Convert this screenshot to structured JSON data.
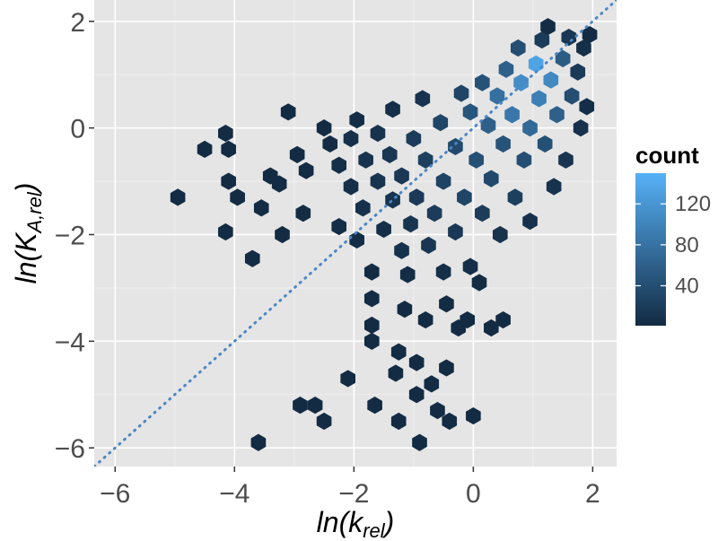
{
  "chart_data": {
    "type": "hexbin",
    "xlabel": "ln(k_rel)",
    "ylabel": "ln(K_A,rel)",
    "xlabel_parts": {
      "prefix": "ln(",
      "main": "k",
      "sub": "rel",
      "suffix": ")"
    },
    "ylabel_parts": {
      "prefix": "ln(",
      "main": "K",
      "sub": "A,rel",
      "suffix": ")"
    },
    "xlim": [
      -6.35,
      2.4
    ],
    "ylim": [
      -6.35,
      2.4
    ],
    "x_ticks": [
      -6,
      -4,
      -2,
      0,
      2
    ],
    "y_ticks": [
      -6,
      -4,
      -2,
      0,
      2
    ],
    "x_tick_labels": [
      "−6",
      "−4",
      "−2",
      "0",
      "2"
    ],
    "y_tick_labels": [
      "−6",
      "−4",
      "−2",
      "0",
      "2"
    ],
    "grid": true,
    "background_color": "#e5e5e5",
    "grid_color": "#ffffff",
    "reference_line": {
      "slope": 1,
      "intercept": 0,
      "style": "dotted",
      "color": "#4a86c6"
    },
    "legend": {
      "title": "count",
      "position": "right",
      "ticks": [
        40,
        80,
        120
      ],
      "tick_labels": [
        "40",
        "80",
        "120"
      ],
      "range": [
        1,
        150
      ],
      "low_color": "#132b43",
      "high_color": "#56b1f7"
    },
    "hexbins": [
      {
        "x": -4.95,
        "y": -1.3,
        "count": 2
      },
      {
        "x": -4.5,
        "y": -0.4,
        "count": 1
      },
      {
        "x": -4.15,
        "y": -0.1,
        "count": 1
      },
      {
        "x": -4.1,
        "y": -1.0,
        "count": 1
      },
      {
        "x": -4.1,
        "y": -0.4,
        "count": 1
      },
      {
        "x": -4.15,
        "y": -1.95,
        "count": 1
      },
      {
        "x": -3.95,
        "y": -1.3,
        "count": 1
      },
      {
        "x": -3.7,
        "y": -2.45,
        "count": 1
      },
      {
        "x": -3.55,
        "y": -1.5,
        "count": 2
      },
      {
        "x": -3.6,
        "y": -5.9,
        "count": 1
      },
      {
        "x": -3.4,
        "y": -0.9,
        "count": 2
      },
      {
        "x": -3.25,
        "y": -1.05,
        "count": 1
      },
      {
        "x": -3.2,
        "y": -2.0,
        "count": 1
      },
      {
        "x": -3.1,
        "y": 0.3,
        "count": 1
      },
      {
        "x": -2.95,
        "y": -0.5,
        "count": 2
      },
      {
        "x": -2.85,
        "y": -1.6,
        "count": 3
      },
      {
        "x": -2.8,
        "y": -0.8,
        "count": 1
      },
      {
        "x": -2.9,
        "y": -5.2,
        "count": 1
      },
      {
        "x": -2.65,
        "y": -5.2,
        "count": 1
      },
      {
        "x": -2.5,
        "y": -5.5,
        "count": 1
      },
      {
        "x": -2.4,
        "y": -0.3,
        "count": 2
      },
      {
        "x": -2.5,
        "y": 0.0,
        "count": 2
      },
      {
        "x": -2.25,
        "y": -0.7,
        "count": 5
      },
      {
        "x": -2.25,
        "y": -1.85,
        "count": 4
      },
      {
        "x": -2.1,
        "y": -4.7,
        "count": 1
      },
      {
        "x": -2.05,
        "y": -1.1,
        "count": 6
      },
      {
        "x": -2.05,
        "y": -0.2,
        "count": 7
      },
      {
        "x": -1.95,
        "y": -2.1,
        "count": 3
      },
      {
        "x": -1.95,
        "y": 0.15,
        "count": 4
      },
      {
        "x": -1.85,
        "y": -1.5,
        "count": 8
      },
      {
        "x": -1.8,
        "y": -0.6,
        "count": 10
      },
      {
        "x": -1.7,
        "y": -2.7,
        "count": 2
      },
      {
        "x": -1.7,
        "y": -3.2,
        "count": 1
      },
      {
        "x": -1.7,
        "y": -3.7,
        "count": 1
      },
      {
        "x": -1.7,
        "y": -4.0,
        "count": 1
      },
      {
        "x": -1.65,
        "y": -5.2,
        "count": 1
      },
      {
        "x": -1.6,
        "y": -1.0,
        "count": 12
      },
      {
        "x": -1.6,
        "y": -0.1,
        "count": 9
      },
      {
        "x": -1.5,
        "y": -1.9,
        "count": 6
      },
      {
        "x": -1.4,
        "y": -0.5,
        "count": 14
      },
      {
        "x": -1.35,
        "y": -1.35,
        "count": 10
      },
      {
        "x": -1.35,
        "y": 0.35,
        "count": 6
      },
      {
        "x": -1.3,
        "y": -4.6,
        "count": 2
      },
      {
        "x": -1.25,
        "y": -4.2,
        "count": 1
      },
      {
        "x": -1.25,
        "y": -5.5,
        "count": 1
      },
      {
        "x": -1.2,
        "y": -0.9,
        "count": 16
      },
      {
        "x": -1.2,
        "y": -2.3,
        "count": 8
      },
      {
        "x": -1.15,
        "y": -3.4,
        "count": 1
      },
      {
        "x": -1.1,
        "y": -2.75,
        "count": 3
      },
      {
        "x": -1.05,
        "y": -1.8,
        "count": 12
      },
      {
        "x": -1.0,
        "y": -0.2,
        "count": 20
      },
      {
        "x": -0.95,
        "y": -1.3,
        "count": 18
      },
      {
        "x": -0.95,
        "y": -4.4,
        "count": 2
      },
      {
        "x": -0.95,
        "y": -5.0,
        "count": 2
      },
      {
        "x": -0.9,
        "y": -5.9,
        "count": 1
      },
      {
        "x": -0.85,
        "y": 0.55,
        "count": 10
      },
      {
        "x": -0.8,
        "y": -0.6,
        "count": 24
      },
      {
        "x": -0.8,
        "y": -3.6,
        "count": 1
      },
      {
        "x": -0.75,
        "y": -2.2,
        "count": 14
      },
      {
        "x": -0.7,
        "y": -4.8,
        "count": 2
      },
      {
        "x": -0.65,
        "y": -1.6,
        "count": 20
      },
      {
        "x": -0.6,
        "y": -5.3,
        "count": 2
      },
      {
        "x": -0.55,
        "y": 0.1,
        "count": 30
      },
      {
        "x": -0.5,
        "y": -1.0,
        "count": 28
      },
      {
        "x": -0.5,
        "y": -2.7,
        "count": 5
      },
      {
        "x": -0.45,
        "y": -3.3,
        "count": 2
      },
      {
        "x": -0.45,
        "y": -4.5,
        "count": 1
      },
      {
        "x": -0.4,
        "y": -5.5,
        "count": 2
      },
      {
        "x": -0.3,
        "y": -0.35,
        "count": 36
      },
      {
        "x": -0.3,
        "y": -1.95,
        "count": 16
      },
      {
        "x": -0.25,
        "y": -3.75,
        "count": 2
      },
      {
        "x": -0.2,
        "y": 0.65,
        "count": 30
      },
      {
        "x": -0.15,
        "y": -1.3,
        "count": 30
      },
      {
        "x": -0.1,
        "y": -3.6,
        "count": 1
      },
      {
        "x": -0.05,
        "y": -2.6,
        "count": 6
      },
      {
        "x": -0.05,
        "y": 0.3,
        "count": 48
      },
      {
        "x": 0.0,
        "y": -5.4,
        "count": 1
      },
      {
        "x": 0.05,
        "y": -0.6,
        "count": 42
      },
      {
        "x": 0.1,
        "y": -2.9,
        "count": 3
      },
      {
        "x": 0.15,
        "y": -1.6,
        "count": 20
      },
      {
        "x": 0.15,
        "y": 0.85,
        "count": 44
      },
      {
        "x": 0.25,
        "y": 0.05,
        "count": 60
      },
      {
        "x": 0.3,
        "y": -3.75,
        "count": 2
      },
      {
        "x": 0.3,
        "y": -0.95,
        "count": 34
      },
      {
        "x": 0.4,
        "y": 0.6,
        "count": 78
      },
      {
        "x": 0.45,
        "y": -2.0,
        "count": 10
      },
      {
        "x": 0.5,
        "y": -3.6,
        "count": 1
      },
      {
        "x": 0.5,
        "y": -0.3,
        "count": 46
      },
      {
        "x": 0.55,
        "y": 1.1,
        "count": 60
      },
      {
        "x": 0.65,
        "y": 0.25,
        "count": 86
      },
      {
        "x": 0.7,
        "y": -1.3,
        "count": 24
      },
      {
        "x": 0.75,
        "y": 1.5,
        "count": 40
      },
      {
        "x": 0.8,
        "y": 0.85,
        "count": 110
      },
      {
        "x": 0.85,
        "y": -0.6,
        "count": 40
      },
      {
        "x": 0.95,
        "y": -1.75,
        "count": 8
      },
      {
        "x": 0.95,
        "y": 0.0,
        "count": 70
      },
      {
        "x": 1.05,
        "y": 1.2,
        "count": 135
      },
      {
        "x": 1.1,
        "y": 0.55,
        "count": 95
      },
      {
        "x": 1.15,
        "y": 1.65,
        "count": 20
      },
      {
        "x": 1.2,
        "y": -0.3,
        "count": 42
      },
      {
        "x": 1.25,
        "y": 1.9,
        "count": 3
      },
      {
        "x": 1.3,
        "y": 0.9,
        "count": 105
      },
      {
        "x": 1.35,
        "y": -1.1,
        "count": 10
      },
      {
        "x": 1.4,
        "y": 0.25,
        "count": 60
      },
      {
        "x": 1.5,
        "y": 1.3,
        "count": 55
      },
      {
        "x": 1.55,
        "y": -0.6,
        "count": 12
      },
      {
        "x": 1.6,
        "y": 1.7,
        "count": 14
      },
      {
        "x": 1.65,
        "y": 0.6,
        "count": 40
      },
      {
        "x": 1.75,
        "y": 1.05,
        "count": 18
      },
      {
        "x": 1.8,
        "y": 0.0,
        "count": 8
      },
      {
        "x": 1.85,
        "y": 1.5,
        "count": 6
      },
      {
        "x": 1.9,
        "y": 0.4,
        "count": 4
      },
      {
        "x": 1.95,
        "y": 1.75,
        "count": 1
      }
    ]
  }
}
